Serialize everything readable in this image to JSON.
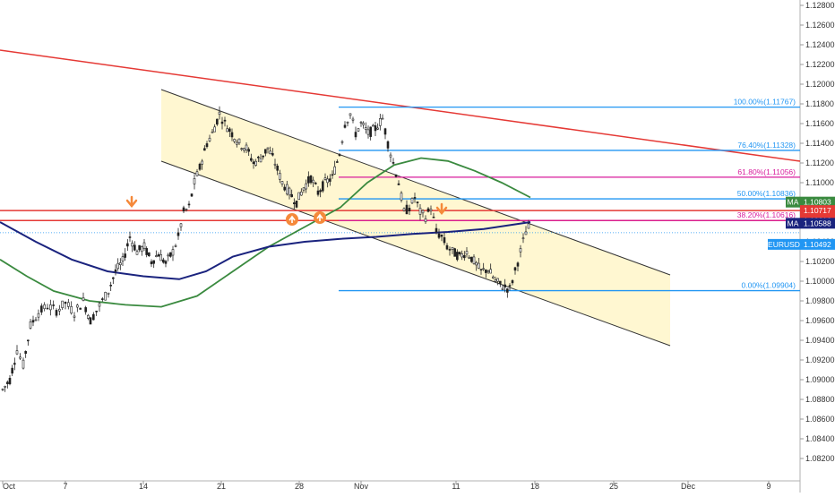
{
  "chart_data": {
    "type": "line",
    "symbol_tag": "EURUSD",
    "x_ticks": [
      "Oct",
      "7",
      "14",
      "21",
      "28",
      "Nov",
      "11",
      "18",
      "25",
      "Dec",
      "9"
    ],
    "y_ticks": [
      "1.12800",
      "1.12600",
      "1.12400",
      "1.12200",
      "1.12000",
      "1.11800",
      "1.11600",
      "1.11400",
      "1.11200",
      "1.11000",
      "1.10800",
      "1.10600",
      "1.10400",
      "1.10200",
      "1.10000",
      "1.09800",
      "1.09600",
      "1.09400",
      "1.09200",
      "1.09000",
      "1.08800",
      "1.08600",
      "1.08400",
      "1.08200"
    ],
    "ylim": [
      1.0812,
      1.129
    ],
    "series": [
      {
        "name": "MA",
        "color": "#3a8a3f",
        "tag": "1.10803"
      },
      {
        "name": "MA",
        "color": "#1a237e",
        "tag": "1.10588"
      }
    ],
    "price_tags": [
      {
        "label": "MA",
        "value": "1.10803",
        "color": "#3a8a3f"
      },
      {
        "label": "",
        "value": "1.10717",
        "color": "#e53935"
      },
      {
        "label": "",
        "value": "1.10616",
        "color": "#e53935"
      },
      {
        "label": "MA",
        "value": "1.10588",
        "color": "#1a237e"
      },
      {
        "label": "EURUSD",
        "value": "1.10492",
        "color": "#2196f3"
      }
    ],
    "fibonacci": [
      {
        "label": "100.00%(1.11767)",
        "value": 1.11767,
        "color": "#2196f3"
      },
      {
        "label": "76.40%(1.11328)",
        "value": 1.11328,
        "color": "#2196f3"
      },
      {
        "label": "61.80%(1.11056)",
        "value": 1.11056,
        "color": "#d81b9c"
      },
      {
        "label": "50.00%(1.10836)",
        "value": 1.10836,
        "color": "#2196f3"
      },
      {
        "label": "38.20%(1.10616)",
        "value": 1.10616,
        "color": "#d81b9c"
      },
      {
        "label": "0.00%(1.09904)",
        "value": 1.09904,
        "color": "#2196f3"
      }
    ],
    "horizontal_lines": [
      {
        "value": 1.10717,
        "color": "#e53935"
      },
      {
        "value": 1.10616,
        "color": "#e53935"
      }
    ],
    "last_price": 1.10492,
    "colors": {
      "channel_fill": "#fff6cc",
      "channel_line": "#333333",
      "trendline": "#e53935",
      "candle": "#222222",
      "marker": "#f5893a",
      "ma_fast": "#3a8a3f",
      "ma_slow": "#1a237e"
    }
  }
}
